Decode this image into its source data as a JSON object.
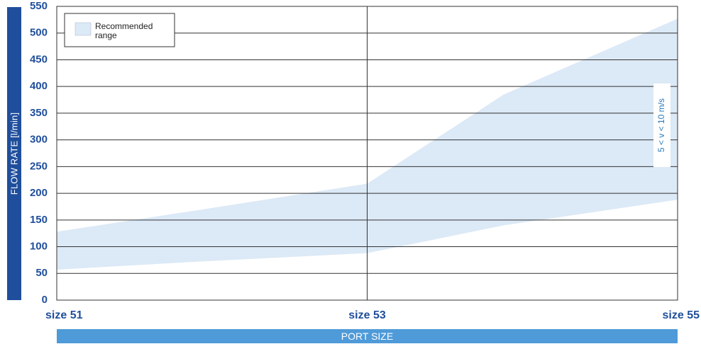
{
  "chart_data": {
    "type": "area",
    "title": "",
    "xlabel": "PORT SIZE",
    "ylabel": "FLOW RATE   [l/min]",
    "categories": [
      "size 51",
      "size 53",
      "size 55"
    ],
    "ylim": [
      0,
      550
    ],
    "yticks": [
      0,
      50,
      100,
      150,
      200,
      250,
      300,
      350,
      400,
      450,
      500,
      550
    ],
    "grid": true,
    "legend": {
      "label": "Recommended range",
      "placement": "top-left"
    },
    "annotation": "5 < v < 10 m/s",
    "series": [
      {
        "name": "Recommended range",
        "x": [
          0,
          0.45,
          1,
          1.44,
          2
        ],
        "upper": [
          128,
          168,
          218,
          385,
          527
        ],
        "lower": [
          57,
          72,
          88,
          140,
          188
        ]
      }
    ],
    "colors": {
      "fill": "#dce9f6",
      "axis_text": "#1f4e9c",
      "bar_dark": "#1f4e9c",
      "bar_light": "#4f9ad8"
    }
  }
}
